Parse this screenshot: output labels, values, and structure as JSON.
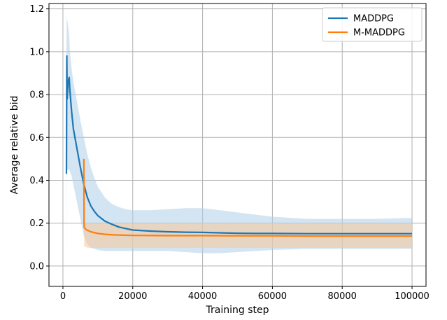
{
  "chart_data": {
    "type": "line",
    "title": "",
    "xlabel": "Training step",
    "ylabel": "Average relative bid",
    "xlim": [
      -4000,
      104000
    ],
    "ylim": [
      -0.095,
      1.225
    ],
    "x_ticks": [
      0,
      20000,
      40000,
      60000,
      80000,
      100000
    ],
    "x_tick_labels": [
      "0",
      "20000",
      "40000",
      "60000",
      "80000",
      "100000"
    ],
    "y_ticks": [
      0.0,
      0.2,
      0.4,
      0.6,
      0.8,
      1.0,
      1.2
    ],
    "y_tick_labels": [
      "0.0",
      "0.2",
      "0.4",
      "0.6",
      "0.8",
      "1.0",
      "1.2"
    ],
    "grid": true,
    "legend_position": "top-right",
    "series": [
      {
        "name": "MADDPG",
        "color": "#1f77b4",
        "band_color": "#aecde8",
        "x": [
          1000,
          1100,
          1200,
          1500,
          1800,
          2000,
          2500,
          3000,
          4000,
          5000,
          6000,
          7000,
          8000,
          9000,
          10000,
          12000,
          14000,
          16000,
          18000,
          20000,
          25000,
          30000,
          35000,
          40000,
          45000,
          50000,
          55000,
          60000,
          70000,
          80000,
          90000,
          100000
        ],
        "y": [
          0.43,
          0.98,
          0.78,
          0.86,
          0.88,
          0.82,
          0.72,
          0.64,
          0.55,
          0.46,
          0.38,
          0.32,
          0.28,
          0.255,
          0.235,
          0.21,
          0.195,
          0.182,
          0.175,
          0.168,
          0.163,
          0.16,
          0.158,
          0.157,
          0.155,
          0.153,
          0.152,
          0.152,
          0.151,
          0.151,
          0.151,
          0.151
        ],
        "upper": [
          1.0,
          1.17,
          1.15,
          1.12,
          1.08,
          1.0,
          0.92,
          0.86,
          0.77,
          0.68,
          0.6,
          0.52,
          0.46,
          0.41,
          0.37,
          0.32,
          0.29,
          0.275,
          0.265,
          0.26,
          0.26,
          0.265,
          0.27,
          0.27,
          0.26,
          0.25,
          0.24,
          0.23,
          0.22,
          0.22,
          0.22,
          0.225
        ],
        "lower": [
          -0.03,
          0.6,
          0.45,
          0.45,
          0.45,
          0.44,
          0.42,
          0.38,
          0.3,
          0.22,
          0.14,
          0.1,
          0.085,
          0.08,
          0.075,
          0.07,
          0.07,
          0.07,
          0.07,
          0.07,
          0.07,
          0.07,
          0.065,
          0.06,
          0.06,
          0.065,
          0.07,
          0.075,
          0.08,
          0.08,
          0.08,
          0.08
        ]
      },
      {
        "name": "M-MADDPG",
        "color": "#ff7f0e",
        "band_color": "#f8c99a",
        "x": [
          6000,
          6050,
          6100,
          6500,
          7000,
          8000,
          10000,
          12000,
          15000,
          20000,
          30000,
          40000,
          50000,
          60000,
          70000,
          80000,
          90000,
          100000
        ],
        "y": [
          0.5,
          0.2,
          0.18,
          0.172,
          0.167,
          0.16,
          0.152,
          0.148,
          0.145,
          0.143,
          0.142,
          0.142,
          0.141,
          0.141,
          0.14,
          0.14,
          0.14,
          0.14
        ],
        "upper": [
          0.5,
          0.2,
          0.2,
          0.2,
          0.2,
          0.2,
          0.2,
          0.2,
          0.2,
          0.2,
          0.2,
          0.2,
          0.2,
          0.2,
          0.2,
          0.2,
          0.2,
          0.2
        ],
        "lower": [
          0.5,
          0.12,
          0.09,
          0.09,
          0.085,
          0.085,
          0.085,
          0.085,
          0.085,
          0.085,
          0.085,
          0.085,
          0.085,
          0.085,
          0.085,
          0.085,
          0.085,
          0.085
        ]
      }
    ]
  }
}
